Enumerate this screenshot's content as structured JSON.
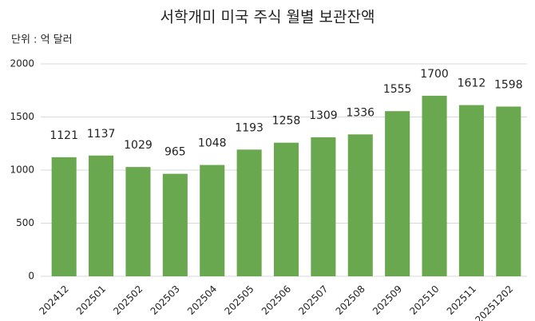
{
  "chart_data": {
    "type": "bar",
    "title": "서학개미 미국 주식 월별 보관잔액",
    "subtitle": "단위 : 억 달러",
    "categories": [
      "202412",
      "202501",
      "202502",
      "202503",
      "202504",
      "202505",
      "202506",
      "202507",
      "202508",
      "202509",
      "202510",
      "202511",
      "20251202"
    ],
    "values": [
      1121,
      1137,
      1029,
      965,
      1048,
      1193,
      1258,
      1309,
      1336,
      1555,
      1700,
      1612,
      1598
    ],
    "color": "#6aa84f",
    "ylim": [
      0,
      2000
    ],
    "yticks": [
      0,
      500,
      1000,
      1500,
      2000
    ],
    "grid": true
  }
}
